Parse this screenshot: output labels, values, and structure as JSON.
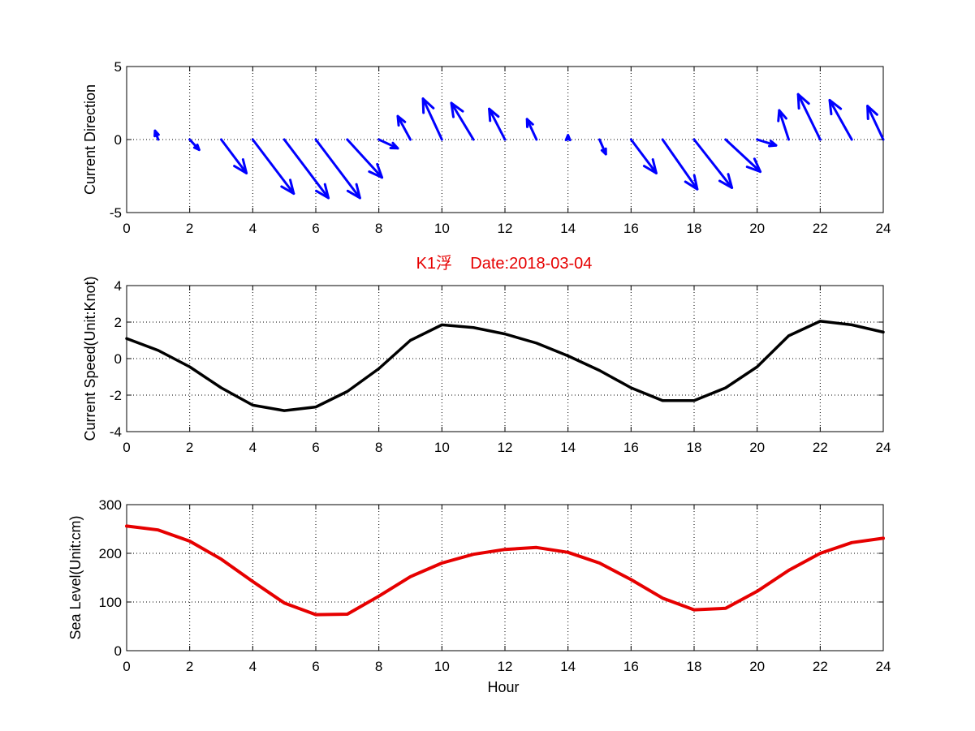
{
  "colors": {
    "direction_arrows": "#0000ff",
    "speed_line": "#000000",
    "sea_level_line": "#e60000",
    "title": "#e60000"
  },
  "chart_data": [
    {
      "id": "direction",
      "type": "quiver",
      "title": "",
      "xlabel": "",
      "ylabel": "Current Direction",
      "xlim": [
        0,
        24
      ],
      "ylim": [
        -5,
        5
      ],
      "xticks": [
        0,
        2,
        4,
        6,
        8,
        10,
        12,
        14,
        16,
        18,
        20,
        22,
        24
      ],
      "yticks": [
        -5,
        0,
        5
      ],
      "grid": true,
      "arrows": [
        {
          "x": 1,
          "u": -0.1,
          "v": 0.6
        },
        {
          "x": 2,
          "u": 0.3,
          "v": -0.7
        },
        {
          "x": 3,
          "u": 0.8,
          "v": -2.3
        },
        {
          "x": 4,
          "u": 1.3,
          "v": -3.7
        },
        {
          "x": 5,
          "u": 1.4,
          "v": -4.0
        },
        {
          "x": 6,
          "u": 1.4,
          "v": -4.0
        },
        {
          "x": 7,
          "u": 1.1,
          "v": -2.6
        },
        {
          "x": 8,
          "u": 0.6,
          "v": -0.6
        },
        {
          "x": 9,
          "u": -0.4,
          "v": 1.6
        },
        {
          "x": 10,
          "u": -0.6,
          "v": 2.8
        },
        {
          "x": 11,
          "u": -0.7,
          "v": 2.5
        },
        {
          "x": 12,
          "u": -0.5,
          "v": 2.1
        },
        {
          "x": 13,
          "u": -0.3,
          "v": 1.4
        },
        {
          "x": 14,
          "u": 0.0,
          "v": 0.3
        },
        {
          "x": 15,
          "u": 0.2,
          "v": -1.0
        },
        {
          "x": 16,
          "u": 0.8,
          "v": -2.3
        },
        {
          "x": 17,
          "u": 1.1,
          "v": -3.4
        },
        {
          "x": 18,
          "u": 1.2,
          "v": -3.3
        },
        {
          "x": 19,
          "u": 1.1,
          "v": -2.2
        },
        {
          "x": 20,
          "u": 0.6,
          "v": -0.4
        },
        {
          "x": 21,
          "u": -0.3,
          "v": 2.0
        },
        {
          "x": 22,
          "u": -0.7,
          "v": 3.1
        },
        {
          "x": 23,
          "u": -0.7,
          "v": 2.7
        },
        {
          "x": 24,
          "u": -0.5,
          "v": 2.3
        }
      ]
    },
    {
      "id": "speed",
      "type": "line",
      "title": "K1浮    Date:2018-03-04",
      "xlabel": "",
      "ylabel": "Current Speed(Unit:Knot)",
      "xlim": [
        0,
        24
      ],
      "ylim": [
        -4,
        4
      ],
      "xticks": [
        0,
        2,
        4,
        6,
        8,
        10,
        12,
        14,
        16,
        18,
        20,
        22,
        24
      ],
      "yticks": [
        -4,
        -2,
        0,
        2,
        4
      ],
      "grid": true,
      "x": [
        0,
        1,
        2,
        3,
        4,
        5,
        6,
        7,
        8,
        9,
        10,
        11,
        12,
        13,
        14,
        15,
        16,
        17,
        18,
        19,
        20,
        21,
        22,
        23,
        24
      ],
      "y": [
        1.1,
        0.45,
        -0.45,
        -1.6,
        -2.55,
        -2.85,
        -2.65,
        -1.8,
        -0.55,
        1.0,
        1.85,
        1.7,
        1.35,
        0.85,
        0.15,
        -0.65,
        -1.6,
        -2.3,
        -2.3,
        -1.6,
        -0.45,
        1.25,
        2.05,
        1.85,
        1.45
      ]
    },
    {
      "id": "sealevel",
      "type": "line",
      "title": "",
      "xlabel": "Hour",
      "ylabel": "Sea Level(Unit:cm)",
      "xlim": [
        0,
        24
      ],
      "ylim": [
        0,
        300
      ],
      "xticks": [
        0,
        2,
        4,
        6,
        8,
        10,
        12,
        14,
        16,
        18,
        20,
        22,
        24
      ],
      "yticks": [
        0,
        100,
        200,
        300
      ],
      "grid": true,
      "x": [
        0,
        1,
        2,
        3,
        4,
        5,
        6,
        7,
        8,
        9,
        10,
        11,
        12,
        13,
        14,
        15,
        16,
        17,
        18,
        19,
        20,
        21,
        22,
        23,
        24
      ],
      "y": [
        256,
        248,
        225,
        188,
        142,
        98,
        74,
        75,
        112,
        152,
        180,
        198,
        208,
        212,
        202,
        180,
        146,
        108,
        84,
        87,
        122,
        165,
        200,
        222,
        231
      ]
    }
  ]
}
